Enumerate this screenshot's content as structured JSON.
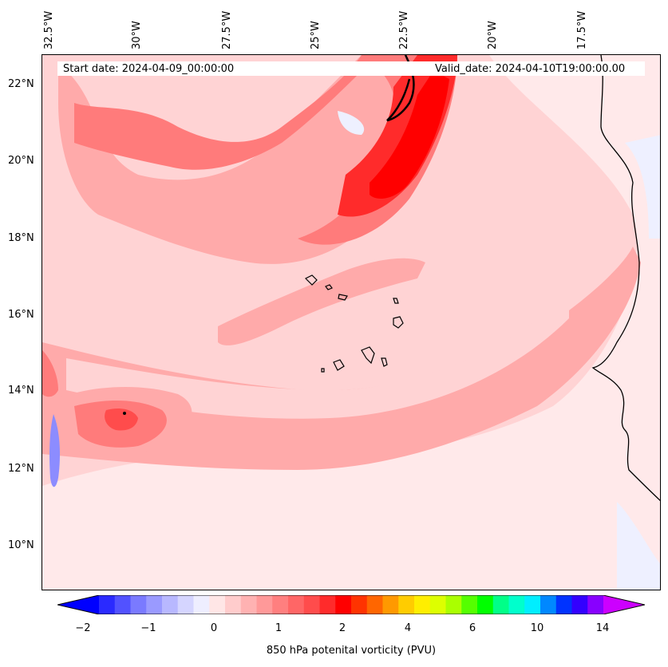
{
  "header": {
    "start_date": "Start date: 2024-04-09_00:00:00",
    "valid_date": "Valid_date: 2024-04-10T19:00:00.00"
  },
  "longitude_labels": [
    "32.5°W",
    "30°W",
    "27.5°W",
    "25°W",
    "22.5°W",
    "20°W",
    "17.5°W"
  ],
  "latitude_labels": [
    "22°N",
    "20°N",
    "18°N",
    "16°N",
    "14°N",
    "12°N",
    "10°N"
  ],
  "colorbar": {
    "title": "850 hPa potenital vorticity (PVU)",
    "tick_labels": [
      "−2",
      "−1",
      "0",
      "1",
      "2",
      "4",
      "6",
      "10",
      "14"
    ],
    "colors": [
      "#0000ff",
      "#2a2aff",
      "#5252ff",
      "#7a7aff",
      "#9a9aff",
      "#b8b8ff",
      "#d5d5ff",
      "#eeeeff",
      "#ffe6e6",
      "#ffcccc",
      "#ffb2b2",
      "#ff9999",
      "#ff7f7f",
      "#ff6666",
      "#ff4c4c",
      "#ff2b2b",
      "#ff0000",
      "#ff3300",
      "#ff6600",
      "#ff9900",
      "#ffcc00",
      "#ffee00",
      "#ddff00",
      "#aaff00",
      "#55ff00",
      "#00ff00",
      "#00ff88",
      "#00ffcc",
      "#00eeff",
      "#0088ff",
      "#0033ff",
      "#3300ff",
      "#8800ff",
      "#cc00ff"
    ],
    "extend": "both"
  },
  "field_colors": {
    "background": "#ffe9ea",
    "light": "#ffd3d4",
    "medium": "#ffaaaa",
    "strong": "#ff7b7b",
    "intense": "#ff2b2b",
    "core": "#ff0000",
    "negative_light": "#eef0ff",
    "negative_blue": "#8c8cff",
    "coast": "#000000"
  }
}
